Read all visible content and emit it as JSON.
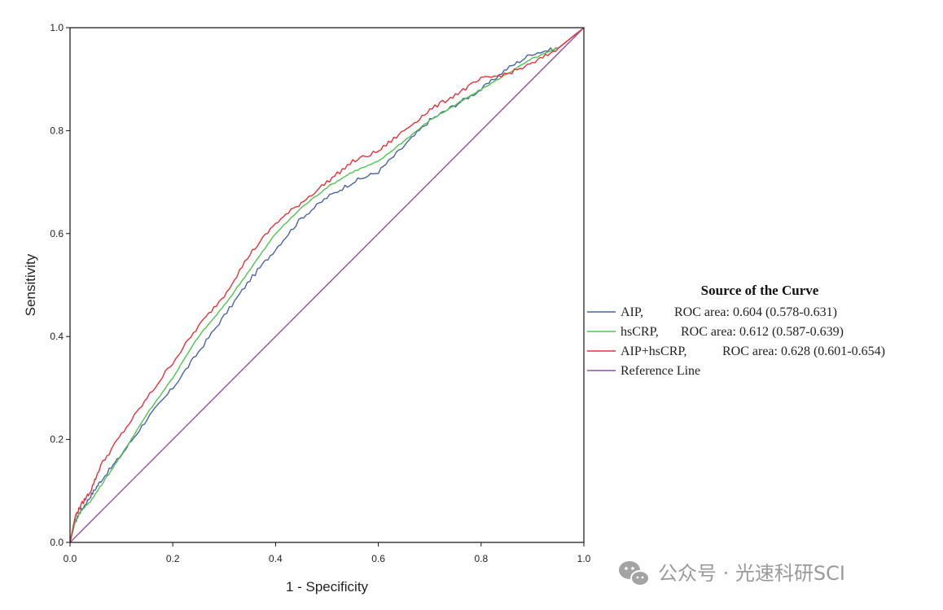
{
  "chart_data": {
    "type": "line",
    "title": "",
    "xlabel": "1 - Specificity",
    "ylabel": "Sensitivity",
    "xlim": [
      0,
      1
    ],
    "ylim": [
      0,
      1
    ],
    "x_ticks": [
      "0.0",
      "0.2",
      "0.4",
      "0.6",
      "0.8",
      "1.0"
    ],
    "y_ticks": [
      "0.0",
      "0.2",
      "0.4",
      "0.6",
      "0.8",
      "1.0"
    ],
    "grid": false,
    "legend": {
      "title": "Source of the Curve",
      "position": "right",
      "entries": [
        {
          "name": "AIP,",
          "roc": "ROC area: 0.604 (0.578-0.631)",
          "color": "#4a62a8"
        },
        {
          "name": "hsCRP,",
          "roc": "ROC area: 0.612 (0.587-0.639)",
          "color": "#4fc54f"
        },
        {
          "name": "AIP+hsCRP,",
          "roc": "ROC area: 0.628 (0.601-0.654)",
          "color": "#e8303a"
        },
        {
          "name": "Reference Line",
          "roc": "",
          "color": "#9a4aa8"
        }
      ]
    },
    "series": [
      {
        "name": "AIP",
        "color": "#4a62a8",
        "x": [
          0,
          0.01,
          0.02,
          0.04,
          0.06,
          0.1,
          0.15,
          0.2,
          0.25,
          0.3,
          0.35,
          0.4,
          0.45,
          0.5,
          0.55,
          0.6,
          0.65,
          0.7,
          0.75,
          0.8,
          0.85,
          0.9,
          0.95,
          1.0
        ],
        "y": [
          0,
          0.04,
          0.06,
          0.09,
          0.12,
          0.17,
          0.24,
          0.3,
          0.37,
          0.44,
          0.51,
          0.57,
          0.63,
          0.67,
          0.7,
          0.72,
          0.77,
          0.82,
          0.85,
          0.88,
          0.92,
          0.95,
          0.96,
          1.0
        ]
      },
      {
        "name": "hsCRP",
        "color": "#4fc54f",
        "x": [
          0,
          0.01,
          0.02,
          0.04,
          0.06,
          0.1,
          0.15,
          0.2,
          0.25,
          0.3,
          0.35,
          0.4,
          0.45,
          0.5,
          0.55,
          0.6,
          0.65,
          0.7,
          0.75,
          0.8,
          0.85,
          0.9,
          0.95,
          1.0
        ],
        "y": [
          0,
          0.04,
          0.06,
          0.08,
          0.11,
          0.17,
          0.25,
          0.32,
          0.4,
          0.46,
          0.53,
          0.6,
          0.65,
          0.69,
          0.72,
          0.74,
          0.78,
          0.82,
          0.85,
          0.88,
          0.91,
          0.94,
          0.96,
          1.0
        ]
      },
      {
        "name": "AIP+hsCRP",
        "color": "#e8303a",
        "x": [
          0,
          0.01,
          0.02,
          0.04,
          0.06,
          0.1,
          0.15,
          0.2,
          0.25,
          0.3,
          0.35,
          0.4,
          0.45,
          0.5,
          0.55,
          0.6,
          0.65,
          0.7,
          0.75,
          0.8,
          0.85,
          0.9,
          0.95,
          1.0
        ],
        "y": [
          0,
          0.05,
          0.07,
          0.1,
          0.15,
          0.21,
          0.28,
          0.35,
          0.42,
          0.48,
          0.56,
          0.62,
          0.66,
          0.7,
          0.74,
          0.76,
          0.8,
          0.84,
          0.87,
          0.9,
          0.91,
          0.93,
          0.96,
          1.0
        ]
      },
      {
        "name": "Reference Line",
        "color": "#9a4aa8",
        "x": [
          0,
          1
        ],
        "y": [
          0,
          1
        ]
      }
    ]
  },
  "watermark": {
    "icon": "wechat-icon",
    "text": "公众号 · 光速科研SCI"
  }
}
